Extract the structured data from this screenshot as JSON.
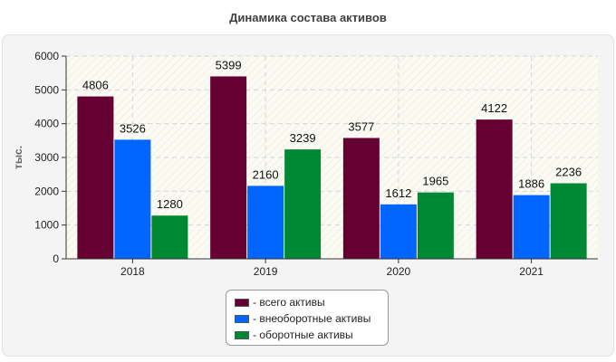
{
  "chart_data": {
    "type": "bar",
    "title": "Динамика состава активов",
    "ylabel": "тыс.",
    "xlabel": "",
    "ylim": [
      0,
      6000
    ],
    "yticks": [
      0,
      1000,
      2000,
      3000,
      4000,
      5000,
      6000
    ],
    "categories": [
      "2018",
      "2019",
      "2020",
      "2021"
    ],
    "grid": true,
    "legend_position": "bottom",
    "series": [
      {
        "name": "всего активы",
        "legend_label": "- всего активы",
        "color": "#660033",
        "values": [
          4806,
          5399,
          3577,
          4122
        ]
      },
      {
        "name": "внеоборотные активы",
        "legend_label": "- внеоборотные активы",
        "color": "#0066ff",
        "values": [
          3526,
          2160,
          1612,
          1886
        ]
      },
      {
        "name": "оборотные активы",
        "legend_label": "- оборотные активы",
        "color": "#008833",
        "values": [
          1280,
          3239,
          1965,
          2236
        ]
      }
    ]
  }
}
